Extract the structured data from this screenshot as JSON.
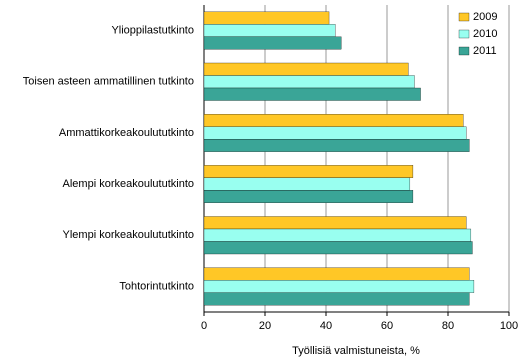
{
  "chart_data": {
    "type": "hbar",
    "xlabel": "Työllisiä valmistuneista, %",
    "categories": [
      "Ylioppilastutkinto",
      "Toisen asteen ammatillinen tutkinto",
      "Ammattikorkeakoulututkinto",
      "Alempi korkeakoulututkinto",
      "Ylempi korkeakoulututkinto",
      "Tohtorintutkinto"
    ],
    "series": [
      {
        "name": "2009",
        "color": "#ffc726",
        "values": [
          41,
          67,
          85,
          68.5,
          86,
          87
        ]
      },
      {
        "name": "2010",
        "color": "#99fff0",
        "values": [
          43,
          69,
          86,
          67.5,
          87.5,
          88.5
        ]
      },
      {
        "name": "2011",
        "color": "#3aa597",
        "values": [
          45,
          71,
          87,
          68.5,
          88,
          87
        ]
      }
    ],
    "xlim": [
      0,
      100
    ],
    "xticks": [
      0,
      20,
      40,
      60,
      80,
      100
    ],
    "grid": true,
    "legend": "top-right"
  }
}
